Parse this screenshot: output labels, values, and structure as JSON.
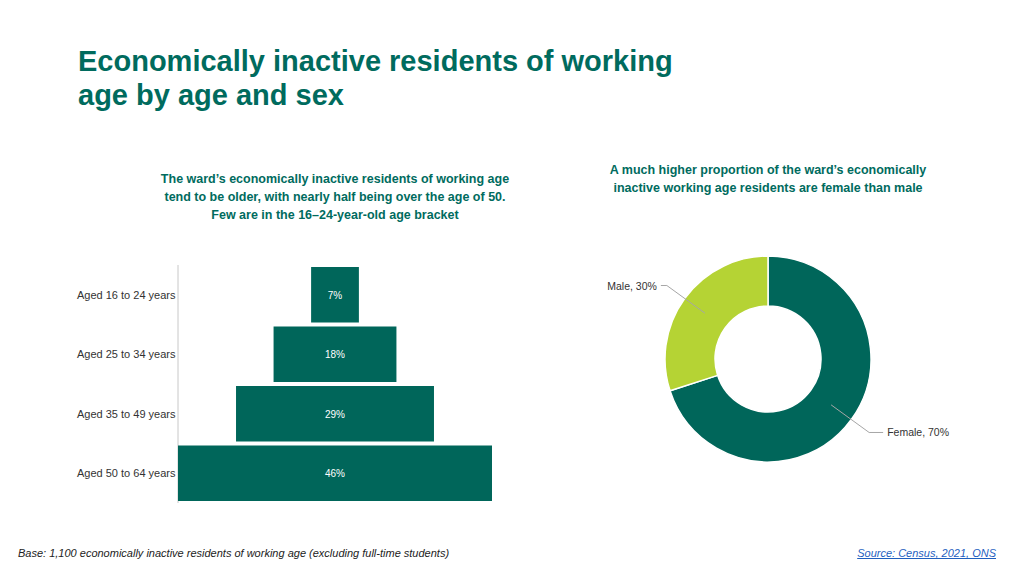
{
  "title": "Economically inactive residents of working age by age and sex",
  "base_note": "Base: 1,100 economically inactive residents of working age (excluding full-time students)",
  "source": "Source: Census, 2021, ONS",
  "chart_data": [
    {
      "type": "bar",
      "orientation": "horizontal",
      "subtitle": "The ward’s economically inactive residents of working age tend to be older, with nearly half being over the age of 50. Few are in the 16–24-year-old age bracket",
      "categories": [
        "Aged 16 to 24 years",
        "Aged 25 to 34 years",
        "Aged 35 to 49 years",
        "Aged 50 to 64 years"
      ],
      "values": [
        7,
        18,
        29,
        46
      ],
      "value_labels": [
        "7%",
        "18%",
        "29%",
        "46%"
      ],
      "color": "#00665a",
      "data_labels": true,
      "tick_labels": "y"
    },
    {
      "type": "donut",
      "subtitle": "A much higher proportion of the ward’s economically inactive working age residents are female than male",
      "categories": [
        "Female",
        "Male"
      ],
      "values": [
        70,
        30
      ],
      "value_labels": [
        "70%",
        "30%"
      ],
      "colors": [
        "#00665a",
        "#b5d334"
      ],
      "data_labels": true
    }
  ]
}
